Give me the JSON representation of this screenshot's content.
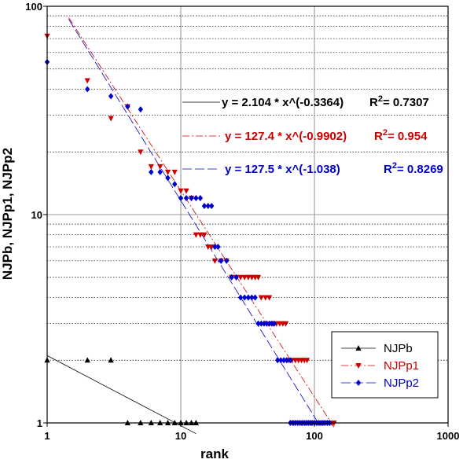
{
  "chart_data": {
    "type": "scatter",
    "xscale": "log",
    "yscale": "log",
    "xlim": [
      1,
      1000
    ],
    "ylim": [
      1,
      100
    ],
    "xlabel": "rank",
    "ylabel": "NJPb, NJPp1, NJPp2",
    "xticks": [
      "1",
      "10",
      "100",
      "1000"
    ],
    "yticks": [
      "1",
      "10",
      "100"
    ],
    "grid": true,
    "legend_position": "bottom-right",
    "series": [
      {
        "name": "NJPb",
        "color": "#000000",
        "marker": "triangle-up",
        "points": [
          [
            1,
            2
          ],
          [
            2,
            2
          ],
          [
            3,
            2
          ],
          [
            4,
            1
          ],
          [
            5,
            1
          ],
          [
            6,
            1
          ],
          [
            7,
            1
          ],
          [
            8,
            1
          ],
          [
            9,
            1
          ],
          [
            10,
            1
          ],
          [
            11,
            1
          ],
          [
            12,
            1
          ],
          [
            13,
            1
          ]
        ],
        "fit": {
          "a": 2.104,
          "b": -0.3364,
          "r2": 0.7307,
          "x_range": [
            1,
            13
          ]
        }
      },
      {
        "name": "NJPp1",
        "color": "#cc0000",
        "marker": "triangle-down",
        "points": [
          [
            1,
            72
          ],
          [
            2,
            44
          ],
          [
            3,
            29
          ],
          [
            4,
            33
          ],
          [
            5,
            20
          ],
          [
            6,
            17
          ],
          [
            7,
            17
          ],
          [
            8,
            16
          ],
          [
            9,
            16
          ],
          [
            10,
            13
          ],
          [
            11,
            13
          ],
          [
            12,
            12
          ],
          [
            13,
            8
          ],
          [
            14,
            8
          ],
          [
            15,
            8
          ],
          [
            16,
            7
          ],
          [
            17,
            7
          ],
          [
            18,
            6
          ],
          [
            20,
            6
          ],
          [
            22,
            6
          ],
          [
            24,
            5
          ],
          [
            26,
            5
          ],
          [
            28,
            5
          ],
          [
            30,
            5
          ],
          [
            32,
            5
          ],
          [
            34,
            5
          ],
          [
            36,
            5
          ],
          [
            38,
            5
          ],
          [
            40,
            4
          ],
          [
            43,
            4
          ],
          [
            46,
            4
          ],
          [
            49,
            3
          ],
          [
            52,
            3
          ],
          [
            55,
            3
          ],
          [
            58,
            3
          ],
          [
            61,
            3
          ],
          [
            64,
            2
          ],
          [
            68,
            2
          ],
          [
            72,
            2
          ],
          [
            76,
            2
          ],
          [
            80,
            2
          ],
          [
            84,
            2
          ],
          [
            88,
            2
          ],
          [
            70,
            1
          ],
          [
            75,
            1
          ],
          [
            80,
            1
          ],
          [
            85,
            1
          ],
          [
            90,
            1
          ],
          [
            95,
            1
          ],
          [
            100,
            1
          ],
          [
            105,
            1
          ],
          [
            110,
            1
          ],
          [
            115,
            1
          ],
          [
            120,
            1
          ],
          [
            125,
            1
          ],
          [
            130,
            1
          ],
          [
            135,
            1
          ],
          [
            140,
            1
          ]
        ],
        "fit": {
          "a": 127.4,
          "b": -0.9902,
          "r2": 0.954,
          "x_range": [
            1.45,
            140
          ]
        }
      },
      {
        "name": "NJPp2",
        "color": "#0000cc",
        "marker": "diamond",
        "points": [
          [
            1,
            54
          ],
          [
            2,
            40
          ],
          [
            3,
            37
          ],
          [
            4,
            33
          ],
          [
            5,
            32
          ],
          [
            6,
            16
          ],
          [
            7,
            16
          ],
          [
            8,
            15
          ],
          [
            9,
            14
          ],
          [
            10,
            12
          ],
          [
            11,
            12
          ],
          [
            12,
            12
          ],
          [
            13,
            12
          ],
          [
            14,
            12
          ],
          [
            15,
            11
          ],
          [
            16,
            11
          ],
          [
            17,
            11
          ],
          [
            18,
            7
          ],
          [
            19,
            7
          ],
          [
            20,
            6
          ],
          [
            22,
            6
          ],
          [
            24,
            5
          ],
          [
            26,
            5
          ],
          [
            28,
            4
          ],
          [
            30,
            4
          ],
          [
            32,
            4
          ],
          [
            34,
            4
          ],
          [
            36,
            4
          ],
          [
            38,
            3
          ],
          [
            40,
            3
          ],
          [
            42,
            3
          ],
          [
            44,
            3
          ],
          [
            46,
            3
          ],
          [
            48,
            3
          ],
          [
            50,
            3
          ],
          [
            53,
            2
          ],
          [
            56,
            2
          ],
          [
            59,
            2
          ],
          [
            62,
            2
          ],
          [
            66,
            2
          ],
          [
            66,
            1
          ],
          [
            69,
            1
          ],
          [
            72,
            1
          ],
          [
            75,
            1
          ],
          [
            78,
            1
          ],
          [
            81,
            1
          ],
          [
            84,
            1
          ],
          [
            87,
            1
          ],
          [
            90,
            1
          ],
          [
            93,
            1
          ],
          [
            96,
            1
          ],
          [
            100,
            1
          ],
          [
            104,
            1
          ],
          [
            108,
            1
          ],
          [
            112,
            1
          ],
          [
            116,
            1
          ],
          [
            120,
            1
          ],
          [
            125,
            1
          ],
          [
            130,
            1
          ]
        ],
        "fit": {
          "a": 127.5,
          "b": -1.038,
          "r2": 0.8269,
          "x_range": [
            1.45,
            110
          ]
        }
      }
    ],
    "annotations": [
      {
        "series": 0,
        "equation": "y = 2.104 * x^(-0.3364)",
        "r2_label": "R",
        "r2_sup": "2",
        "r2_value": "= 0.7307"
      },
      {
        "series": 1,
        "equation": "y = 127.4 * x^(-0.9902)",
        "r2_label": "R",
        "r2_sup": "2",
        "r2_value": "= 0.954"
      },
      {
        "series": 2,
        "equation": "y = 127.5 * x^(-1.038)",
        "r2_label": "R",
        "r2_sup": "2",
        "r2_value": "= 0.8269"
      }
    ]
  }
}
